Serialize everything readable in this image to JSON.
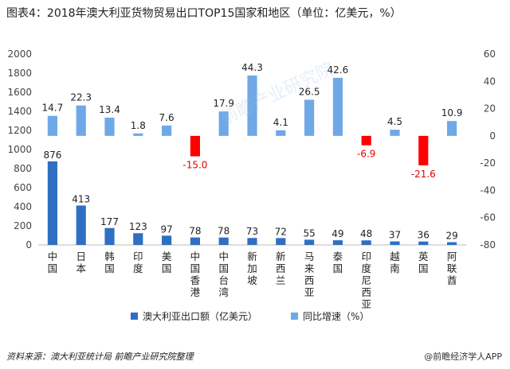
{
  "title": "图表4：2018年澳大利亚货物贸易出口TOP15国家和地区（单位：亿美元，%）",
  "source": "资料来源：澳大利亚统计局 前瞻产业研究院整理",
  "brand": "@前瞻经济学人APP",
  "watermark": "前瞻产业研究院",
  "colors": {
    "export_bar": "#2e6fc2",
    "growth_bar_pos": "#6fa8e6",
    "growth_bar_neg": "#ff0000",
    "negative_label": "#e00000"
  },
  "chart_data": {
    "type": "bar",
    "categories": [
      "中国",
      "日本",
      "韩国",
      "印度",
      "美国",
      "中国香港",
      "中国台湾",
      "新加坡",
      "新西兰",
      "马来西亚",
      "泰国",
      "印度尼西亚",
      "越南",
      "英国",
      "阿联酋"
    ],
    "series": [
      {
        "name": "澳大利亚出口额（亿美元）",
        "axis": "left",
        "values": [
          876,
          413,
          177,
          123,
          97,
          78,
          78,
          73,
          72,
          55,
          49,
          48,
          37,
          36,
          29
        ]
      },
      {
        "name": "同比增速（%）",
        "axis": "right",
        "values": [
          14.7,
          22.3,
          13.4,
          1.8,
          7.6,
          -15.0,
          17.9,
          44.3,
          4.1,
          26.5,
          42.6,
          -6.9,
          4.5,
          -21.6,
          10.9
        ]
      }
    ],
    "y_left": {
      "min": 0,
      "max": 2000,
      "ticks": [
        0,
        200,
        400,
        600,
        800,
        1000,
        1200,
        1400,
        1600,
        1800,
        2000
      ]
    },
    "y_right": {
      "min": -80,
      "max": 60,
      "ticks": [
        -80,
        -60,
        -40,
        -20,
        0,
        20,
        40,
        60
      ]
    },
    "export_labels": [
      "876",
      "413",
      "177",
      "123",
      "97",
      "78",
      "78",
      "73",
      "72",
      "55",
      "49",
      "48",
      "37",
      "36",
      "29"
    ],
    "growth_labels": [
      "14.7",
      "22.3",
      "13.4",
      "1.8",
      "7.6",
      "-15.0",
      "17.9",
      "44.3",
      "4.1",
      "26.5",
      "42.6",
      "-6.9",
      "4.5",
      "-21.6",
      "10.9"
    ],
    "legend": [
      "澳大利亚出口额（亿美元）",
      "同比增速（%）"
    ]
  }
}
